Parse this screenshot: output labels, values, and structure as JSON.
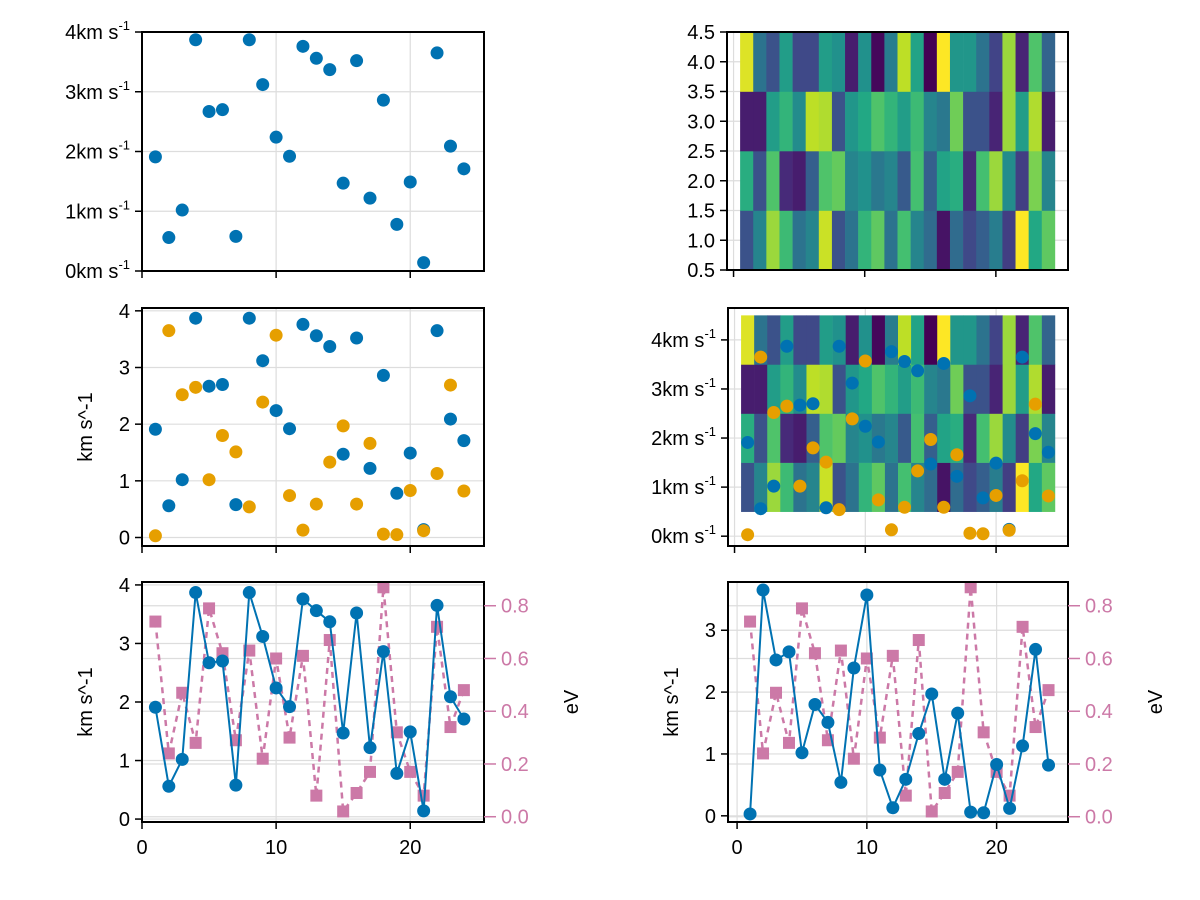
{
  "colors": {
    "blue": "#0072b2",
    "orange": "#e69f00",
    "pink": "#cc79a7",
    "grid": "#dddddd",
    "frame": "#000000"
  },
  "chart_data": [
    {
      "id": "top-left",
      "type": "scatter",
      "title": "",
      "xlabel": "",
      "ylabel": "",
      "xlim": [
        0,
        25.5
      ],
      "ylim": [
        0,
        4
      ],
      "x_ticks": [
        0,
        10,
        20
      ],
      "x_tick_labels_visible": false,
      "y_ticks": [
        0,
        1,
        2,
        3,
        4
      ],
      "y_tick_labels": [
        "0km s",
        "1km s",
        "2km s",
        "3km s",
        "4km s"
      ],
      "y_tick_superscript": "-1",
      "grid": true,
      "series": [
        {
          "name": "blue",
          "marker": "circle",
          "values_ref": "series_blue"
        }
      ]
    },
    {
      "id": "top-right",
      "type": "heatmap",
      "xlim": [
        -0.5,
        25.5
      ],
      "ylim": [
        0.5,
        4.5
      ],
      "x_ticks": [
        0,
        10,
        20
      ],
      "x_tick_labels_visible": false,
      "y_ticks": [
        0.5,
        1.0,
        1.5,
        2.0,
        2.5,
        3.0,
        3.5,
        4.0,
        4.5
      ],
      "y_tick_labels": [
        "0.5",
        "1.0",
        "1.5",
        "2.0",
        "2.5",
        "3.0",
        "3.5",
        "4.0",
        "4.5"
      ],
      "colormap": "viridis",
      "grid": true
    },
    {
      "id": "middle-left",
      "type": "scatter",
      "xlim": [
        0,
        25.5
      ],
      "ylim": [
        -0.15,
        4.05
      ],
      "x_ticks": [
        0,
        10,
        20
      ],
      "x_tick_labels_visible": false,
      "y_ticks": [
        0,
        1,
        2,
        3,
        4
      ],
      "y_tick_labels": [
        "0",
        "1",
        "2",
        "3",
        "4"
      ],
      "ylabel": "km s^-1",
      "grid": true,
      "series": [
        {
          "name": "blue",
          "marker": "circle"
        },
        {
          "name": "orange",
          "marker": "circle"
        }
      ]
    },
    {
      "id": "middle-right",
      "type": "heatmap+scatter",
      "xlim": [
        -0.5,
        25.5
      ],
      "ylim": [
        -0.2,
        4.65
      ],
      "x_ticks": [
        0,
        10,
        20
      ],
      "x_tick_labels_visible": false,
      "y_ticks": [
        0,
        1,
        2,
        3,
        4
      ],
      "y_tick_labels": [
        "0km s",
        "1km s",
        "2km s",
        "3km s",
        "4km s"
      ],
      "y_tick_superscript": "-1",
      "grid": true
    },
    {
      "id": "bottom-left",
      "type": "line",
      "xlim": [
        0,
        25.5
      ],
      "ylim": [
        -0.05,
        4.05
      ],
      "x_ticks": [
        0,
        10,
        20
      ],
      "x_tick_labels": [
        "0",
        "10",
        "20"
      ],
      "y_ticks": [
        0,
        1,
        2,
        3,
        4
      ],
      "y_tick_labels": [
        "0",
        "1",
        "2",
        "3",
        "4"
      ],
      "ylabel": "km s^-1",
      "y2label": "eV",
      "y2lim": [
        -0.02,
        0.89
      ],
      "y2_ticks": [
        0.0,
        0.2,
        0.4,
        0.6,
        0.8
      ],
      "y2_tick_labels": [
        "0.0",
        "0.2",
        "0.4",
        "0.6",
        "0.8"
      ],
      "grid": true,
      "series": [
        {
          "name": "blue",
          "style": "solid line + circle markers",
          "axis": "left"
        },
        {
          "name": "pink",
          "style": "dashed line + square markers",
          "axis": "right"
        }
      ]
    },
    {
      "id": "bottom-right",
      "type": "line",
      "xlim": [
        -0.7,
        25.5
      ],
      "ylim": [
        -0.1,
        3.78
      ],
      "x_ticks": [
        0,
        10,
        20
      ],
      "x_tick_labels": [
        "0",
        "10",
        "20"
      ],
      "y_ticks": [
        0,
        1,
        2,
        3
      ],
      "y_tick_labels": [
        "0",
        "1",
        "2",
        "3"
      ],
      "ylabel": "km s^-1",
      "y2label": "eV",
      "y2lim": [
        -0.02,
        0.89
      ],
      "y2_ticks": [
        0.0,
        0.2,
        0.4,
        0.6,
        0.8
      ],
      "y2_tick_labels": [
        "0.0",
        "0.2",
        "0.4",
        "0.6",
        "0.8"
      ],
      "grid": true,
      "series": [
        {
          "name": "orange-values",
          "style": "solid line + circle markers (blue)",
          "axis": "left"
        },
        {
          "name": "pink",
          "style": "dashed line + square markers",
          "axis": "right"
        }
      ]
    }
  ],
  "x": [
    1,
    2,
    3,
    4,
    5,
    6,
    7,
    8,
    9,
    10,
    11,
    12,
    13,
    14,
    15,
    16,
    17,
    18,
    19,
    20,
    21,
    22,
    23,
    24
  ],
  "series_blue": [
    1.91,
    0.56,
    1.02,
    3.87,
    2.67,
    2.7,
    0.58,
    3.87,
    3.12,
    2.24,
    1.92,
    3.76,
    3.56,
    3.37,
    1.47,
    3.52,
    1.22,
    2.86,
    0.78,
    1.49,
    0.14,
    3.65,
    2.09,
    1.71
  ],
  "series_orange": [
    0.03,
    3.65,
    2.52,
    2.65,
    1.02,
    1.8,
    1.51,
    0.54,
    2.39,
    3.57,
    0.74,
    0.13,
    0.59,
    1.33,
    1.97,
    0.59,
    1.66,
    0.06,
    0.05,
    0.83,
    0.12,
    1.13,
    2.69,
    0.82
  ],
  "series_pink": [
    0.74,
    0.24,
    0.47,
    0.28,
    0.79,
    0.62,
    0.29,
    0.63,
    0.22,
    0.6,
    0.3,
    0.61,
    0.08,
    0.67,
    0.02,
    0.09,
    0.17,
    0.87,
    0.32,
    0.17,
    0.08,
    0.72,
    0.34,
    0.48
  ],
  "heatmap": {
    "rows_bottom_to_top": [
      [
        0.25,
        0.45,
        0.85,
        0.68,
        0.38,
        0.45,
        0.92,
        0.25,
        0.38,
        0.65,
        0.75,
        0.38,
        0.7,
        0.45,
        0.35,
        0.05,
        0.35,
        0.22,
        0.3,
        0.42,
        0.18,
        1.0,
        0.6,
        0.75
      ],
      [
        0.62,
        0.25,
        0.72,
        0.12,
        0.08,
        0.3,
        0.72,
        0.76,
        0.45,
        0.5,
        0.4,
        0.45,
        0.28,
        0.7,
        0.3,
        0.58,
        0.62,
        0.12,
        0.7,
        0.85,
        0.48,
        0.18,
        0.8,
        0.45
      ],
      [
        0.08,
        0.08,
        0.55,
        0.65,
        0.48,
        0.9,
        0.88,
        0.25,
        0.52,
        0.6,
        0.72,
        0.65,
        0.55,
        0.68,
        0.45,
        0.4,
        0.78,
        0.25,
        0.25,
        0.1,
        0.85,
        0.55,
        0.88,
        0.08
      ],
      [
        0.95,
        0.38,
        0.25,
        0.55,
        0.22,
        0.22,
        0.55,
        0.5,
        0.08,
        0.5,
        0.02,
        0.42,
        0.9,
        0.58,
        0.0,
        1.0,
        0.52,
        0.52,
        0.38,
        0.2,
        0.85,
        0.1,
        0.72,
        0.32
      ]
    ]
  }
}
